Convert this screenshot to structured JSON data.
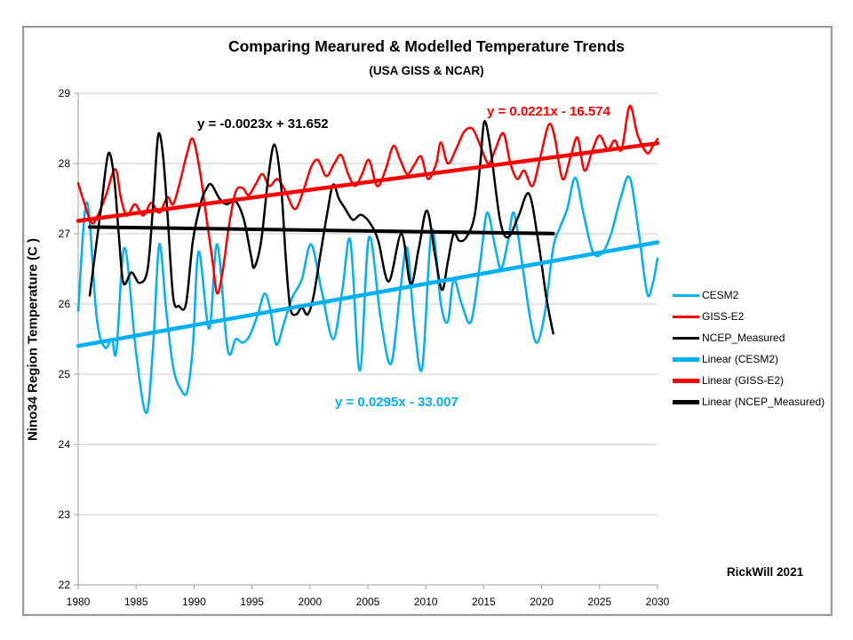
{
  "credit": "RickWill 2021",
  "colors": {
    "cesm2": "#00B0F0",
    "giss_e2": "#FF0000",
    "ncep": "#000000",
    "grid": "#c8c8c8",
    "axis": "#a0a0a0"
  },
  "annotations": {
    "eq_ncep": "y = -0.0023x + 31.652",
    "eq_giss": "y = 0.0221x - 16.574",
    "eq_cesm2": "y = 0.0295x - 33.007"
  },
  "chart_data": {
    "type": "line",
    "title": "Comparing Mearured & Modelled Temperature Trends",
    "subtitle": "(USA GISS & NCAR)",
    "xlabel": "",
    "ylabel": "Nino34 Region Temperature (C )",
    "xlim": [
      1980,
      2030
    ],
    "ylim": [
      22,
      29
    ],
    "x_ticks": [
      1980,
      1985,
      1990,
      1995,
      2000,
      2005,
      2010,
      2015,
      2020,
      2025,
      2030
    ],
    "y_ticks": [
      22,
      23,
      24,
      25,
      26,
      27,
      28,
      29
    ],
    "grid": true,
    "legend_position": "right",
    "series": [
      {
        "name": "CESM2",
        "color": "#00B0F0",
        "width": 2.5,
        "points": [
          [
            1980.0,
            25.9
          ],
          [
            1980.75,
            27.45
          ],
          [
            1981.6,
            25.8
          ],
          [
            1982.3,
            25.38
          ],
          [
            1982.9,
            25.5
          ],
          [
            1983.3,
            25.33
          ],
          [
            1984.0,
            26.8
          ],
          [
            1985.0,
            25.3
          ],
          [
            1985.9,
            24.45
          ],
          [
            1986.5,
            25.5
          ],
          [
            1987.0,
            26.85
          ],
          [
            1987.6,
            25.9
          ],
          [
            1988.2,
            25.1
          ],
          [
            1988.8,
            24.8
          ],
          [
            1989.4,
            24.75
          ],
          [
            1989.9,
            25.4
          ],
          [
            1990.4,
            26.75
          ],
          [
            1991.3,
            25.65
          ],
          [
            1992.0,
            26.85
          ],
          [
            1992.9,
            25.35
          ],
          [
            1993.6,
            25.5
          ],
          [
            1994.2,
            25.45
          ],
          [
            1994.8,
            25.55
          ],
          [
            1995.5,
            25.85
          ],
          [
            1996.1,
            26.15
          ],
          [
            1996.6,
            25.9
          ],
          [
            1997.1,
            25.42
          ],
          [
            1997.8,
            25.75
          ],
          [
            1998.5,
            26.1
          ],
          [
            1999.3,
            26.35
          ],
          [
            2000.1,
            26.85
          ],
          [
            2001.0,
            26.2
          ],
          [
            2002.0,
            25.5
          ],
          [
            2002.8,
            26.2
          ],
          [
            2003.5,
            26.9
          ],
          [
            2004.3,
            25.05
          ],
          [
            2005.1,
            26.95
          ],
          [
            2006.1,
            25.8
          ],
          [
            2007.0,
            25.15
          ],
          [
            2007.8,
            26.2
          ],
          [
            2008.4,
            26.8
          ],
          [
            2009.0,
            25.7
          ],
          [
            2009.7,
            25.1
          ],
          [
            2010.5,
            27.05
          ],
          [
            2011.3,
            26.0
          ],
          [
            2011.9,
            25.75
          ],
          [
            2012.4,
            26.35
          ],
          [
            2013.1,
            26.0
          ],
          [
            2013.9,
            25.75
          ],
          [
            2014.7,
            26.6
          ],
          [
            2015.3,
            27.3
          ],
          [
            2016.0,
            26.8
          ],
          [
            2016.5,
            26.5
          ],
          [
            2017.1,
            26.9
          ],
          [
            2017.6,
            27.3
          ],
          [
            2018.3,
            26.6
          ],
          [
            2019.0,
            25.8
          ],
          [
            2019.6,
            25.45
          ],
          [
            2020.3,
            25.9
          ],
          [
            2021.0,
            26.8
          ],
          [
            2021.6,
            27.1
          ],
          [
            2022.2,
            27.35
          ],
          [
            2022.9,
            27.8
          ],
          [
            2023.6,
            27.3
          ],
          [
            2024.4,
            26.75
          ],
          [
            2025.2,
            26.72
          ],
          [
            2026.0,
            27.0
          ],
          [
            2026.8,
            27.5
          ],
          [
            2027.6,
            27.8
          ],
          [
            2028.4,
            27.0
          ],
          [
            2029.1,
            26.15
          ],
          [
            2029.6,
            26.3
          ],
          [
            2030.0,
            26.65
          ]
        ]
      },
      {
        "name": "GISS-E2",
        "color": "#FF0000",
        "width": 2.5,
        "points": [
          [
            1980.0,
            27.72
          ],
          [
            1980.6,
            27.4
          ],
          [
            1981.2,
            27.15
          ],
          [
            1981.8,
            27.3
          ],
          [
            1982.4,
            27.55
          ],
          [
            1983.2,
            27.92
          ],
          [
            1983.7,
            27.5
          ],
          [
            1984.2,
            27.26
          ],
          [
            1984.9,
            27.42
          ],
          [
            1985.6,
            27.26
          ],
          [
            1986.3,
            27.44
          ],
          [
            1987.0,
            27.3
          ],
          [
            1987.7,
            27.52
          ],
          [
            1988.2,
            27.42
          ],
          [
            1988.8,
            27.75
          ],
          [
            1989.4,
            28.15
          ],
          [
            1989.9,
            28.35
          ],
          [
            1990.5,
            27.9
          ],
          [
            1991.1,
            27.2
          ],
          [
            1991.6,
            26.6
          ],
          [
            1992.0,
            26.15
          ],
          [
            1992.5,
            26.5
          ],
          [
            1993.0,
            27.1
          ],
          [
            1993.6,
            27.6
          ],
          [
            1994.2,
            27.65
          ],
          [
            1994.7,
            27.55
          ],
          [
            1995.3,
            27.7
          ],
          [
            1995.9,
            27.85
          ],
          [
            1996.5,
            27.68
          ],
          [
            1997.2,
            27.78
          ],
          [
            1997.9,
            27.6
          ],
          [
            1998.7,
            27.35
          ],
          [
            1999.4,
            27.6
          ],
          [
            2000.1,
            27.95
          ],
          [
            2000.7,
            28.05
          ],
          [
            2001.4,
            27.82
          ],
          [
            2002.1,
            28.0
          ],
          [
            2002.7,
            28.12
          ],
          [
            2003.3,
            27.85
          ],
          [
            2003.9,
            27.68
          ],
          [
            2004.5,
            27.85
          ],
          [
            2005.1,
            28.05
          ],
          [
            2005.8,
            27.68
          ],
          [
            2006.5,
            27.9
          ],
          [
            2007.2,
            28.25
          ],
          [
            2007.8,
            28.05
          ],
          [
            2008.4,
            27.85
          ],
          [
            2009.0,
            27.98
          ],
          [
            2009.6,
            28.1
          ],
          [
            2010.2,
            27.78
          ],
          [
            2010.9,
            28.0
          ],
          [
            2011.3,
            28.3
          ],
          [
            2011.9,
            28.0
          ],
          [
            2012.6,
            28.2
          ],
          [
            2013.3,
            28.45
          ],
          [
            2014.0,
            28.5
          ],
          [
            2014.6,
            28.3
          ],
          [
            2015.4,
            28.0
          ],
          [
            2016.0,
            28.2
          ],
          [
            2016.7,
            28.43
          ],
          [
            2017.3,
            28.0
          ],
          [
            2017.9,
            27.78
          ],
          [
            2018.5,
            27.9
          ],
          [
            2019.2,
            27.68
          ],
          [
            2019.9,
            28.1
          ],
          [
            2020.6,
            28.55
          ],
          [
            2021.1,
            28.4
          ],
          [
            2021.8,
            27.78
          ],
          [
            2022.5,
            28.1
          ],
          [
            2023.1,
            28.37
          ],
          [
            2023.7,
            27.9
          ],
          [
            2024.4,
            28.2
          ],
          [
            2025.0,
            28.4
          ],
          [
            2025.7,
            28.2
          ],
          [
            2026.3,
            28.33
          ],
          [
            2026.9,
            28.2
          ],
          [
            2027.6,
            28.82
          ],
          [
            2028.3,
            28.4
          ],
          [
            2029.1,
            28.15
          ],
          [
            2029.6,
            28.25
          ],
          [
            2030.0,
            28.35
          ]
        ]
      },
      {
        "name": "NCEP_Measured",
        "color": "#000000",
        "width": 2.5,
        "points": [
          [
            1981.0,
            26.12
          ],
          [
            1981.6,
            26.9
          ],
          [
            1982.0,
            27.4
          ],
          [
            1982.6,
            28.14
          ],
          [
            1983.1,
            27.8
          ],
          [
            1983.5,
            27.0
          ],
          [
            1983.9,
            26.3
          ],
          [
            1984.6,
            26.45
          ],
          [
            1985.3,
            26.3
          ],
          [
            1986.0,
            26.5
          ],
          [
            1986.5,
            27.5
          ],
          [
            1986.9,
            28.4
          ],
          [
            1987.3,
            28.15
          ],
          [
            1987.7,
            27.3
          ],
          [
            1988.2,
            26.1
          ],
          [
            1988.7,
            25.97
          ],
          [
            1989.3,
            26.0
          ],
          [
            1989.9,
            26.9
          ],
          [
            1990.6,
            27.45
          ],
          [
            1991.1,
            27.65
          ],
          [
            1991.5,
            27.7
          ],
          [
            1992.2,
            27.5
          ],
          [
            1992.8,
            27.42
          ],
          [
            1993.6,
            27.46
          ],
          [
            1994.3,
            27.2
          ],
          [
            1994.9,
            26.7
          ],
          [
            1995.2,
            26.52
          ],
          [
            1995.8,
            26.9
          ],
          [
            1996.4,
            27.8
          ],
          [
            1996.95,
            28.27
          ],
          [
            1997.5,
            27.7
          ],
          [
            1997.9,
            26.7
          ],
          [
            1998.3,
            25.95
          ],
          [
            1998.8,
            25.85
          ],
          [
            1999.3,
            25.95
          ],
          [
            1999.8,
            25.85
          ],
          [
            2000.3,
            26.1
          ],
          [
            2000.9,
            26.7
          ],
          [
            2001.5,
            27.3
          ],
          [
            2002.0,
            27.7
          ],
          [
            2002.5,
            27.5
          ],
          [
            2003.0,
            27.37
          ],
          [
            2003.7,
            27.2
          ],
          [
            2004.4,
            27.27
          ],
          [
            2005.2,
            27.15
          ],
          [
            2005.9,
            26.9
          ],
          [
            2006.8,
            26.32
          ],
          [
            2007.9,
            27.0
          ],
          [
            2008.7,
            26.28
          ],
          [
            2009.4,
            26.8
          ],
          [
            2010.1,
            27.33
          ],
          [
            2010.8,
            26.7
          ],
          [
            2011.4,
            26.2
          ],
          [
            2011.9,
            26.6
          ],
          [
            2012.4,
            27.0
          ],
          [
            2012.9,
            26.9
          ],
          [
            2013.5,
            26.95
          ],
          [
            2014.2,
            27.25
          ],
          [
            2014.7,
            28.0
          ],
          [
            2015.05,
            28.6
          ],
          [
            2015.6,
            28.2
          ],
          [
            2016.4,
            27.2
          ],
          [
            2017.1,
            26.95
          ],
          [
            2018.0,
            27.25
          ],
          [
            2018.9,
            27.57
          ],
          [
            2019.7,
            26.9
          ],
          [
            2020.4,
            26.1
          ],
          [
            2021.0,
            25.58
          ]
        ]
      }
    ],
    "trendlines": [
      {
        "name": "Linear (CESM2)",
        "color": "#00B0F0",
        "width": 4.5,
        "slope": 0.0295,
        "intercept": -33.007,
        "x_range": [
          1980,
          2030
        ],
        "equation": "y = 0.0295x - 33.007"
      },
      {
        "name": "Linear (GISS-E2)",
        "color": "#FF0000",
        "width": 4.5,
        "slope": 0.0221,
        "intercept": -16.574,
        "x_range": [
          1980,
          2030
        ],
        "equation": "y = 0.0221x - 16.574"
      },
      {
        "name": "Linear (NCEP_Measured)",
        "color": "#000000",
        "width": 4,
        "slope": -0.0023,
        "intercept": 31.652,
        "x_range": [
          1981,
          2021
        ],
        "equation": "y = -0.0023x + 31.652"
      }
    ],
    "legend_items": [
      {
        "label": "CESM2",
        "color": "#00B0F0",
        "thickness": 3
      },
      {
        "label": "GISS-E2",
        "color": "#FF0000",
        "thickness": 3
      },
      {
        "label": "NCEP_Measured",
        "color": "#000000",
        "thickness": 3
      },
      {
        "label": "Linear (CESM2)",
        "color": "#00B0F0",
        "thickness": 5
      },
      {
        "label": "Linear (GISS-E2)",
        "color": "#FF0000",
        "thickness": 5
      },
      {
        "label": "Linear (NCEP_Measured)",
        "color": "#000000",
        "thickness": 5
      }
    ]
  }
}
